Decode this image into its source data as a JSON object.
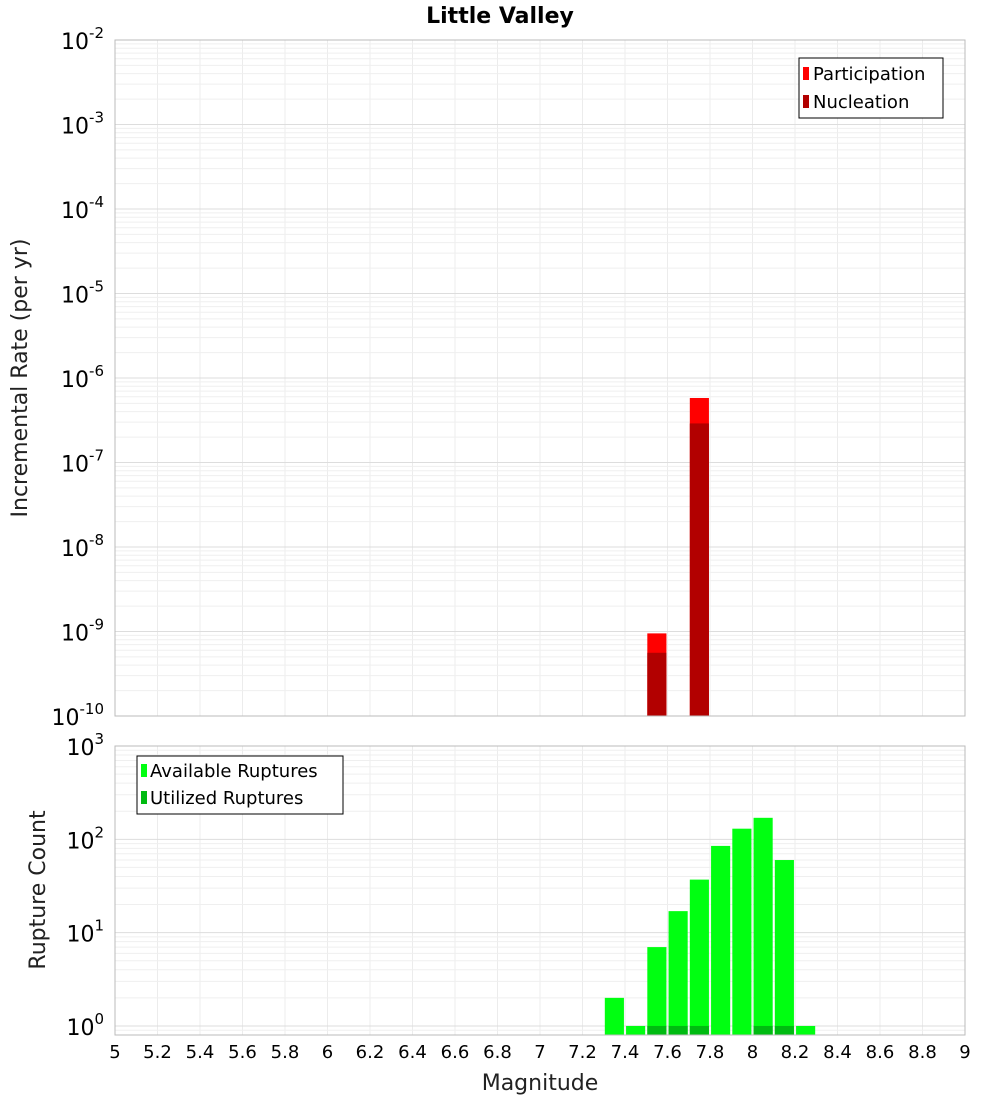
{
  "chart_data": [
    {
      "type": "bar",
      "title": "Little Valley",
      "ylabel": "Incremental Rate (per yr)",
      "xlabel": "",
      "xlim": [
        5,
        9
      ],
      "ylim": [
        1e-10,
        0.01
      ],
      "yscale": "log",
      "ytick_exponents": [
        -10,
        -9,
        -8,
        -7,
        -6,
        -5,
        -4,
        -3,
        -2
      ],
      "grid": true,
      "legend_position": "top-right",
      "series": [
        {
          "name": "Participation",
          "color": "#ff0000",
          "x": [
            7.55,
            7.75
          ],
          "values": [
            9.5e-10,
            5.8e-07
          ]
        },
        {
          "name": "Nucleation",
          "color": "#b20000",
          "x": [
            7.55,
            7.75
          ],
          "values": [
            5.6e-10,
            2.9e-07
          ]
        }
      ]
    },
    {
      "type": "bar",
      "title": "",
      "ylabel": "Rupture Count",
      "xlabel": "Magnitude",
      "xlim": [
        5,
        9
      ],
      "ylim": [
        0.8,
        1000
      ],
      "yscale": "log",
      "ytick_exponents": [
        0,
        1,
        2,
        3
      ],
      "xticks": [
        "5",
        "5.2",
        "5.4",
        "5.6",
        "5.8",
        "6",
        "6.2",
        "6.4",
        "6.6",
        "6.8",
        "7",
        "7.2",
        "7.4",
        "7.6",
        "7.8",
        "8",
        "8.2",
        "8.4",
        "8.6",
        "8.8",
        "9"
      ],
      "grid": true,
      "legend_position": "top-left",
      "series": [
        {
          "name": "Available Ruptures",
          "color": "#00ff11",
          "x": [
            7.35,
            7.45,
            7.55,
            7.65,
            7.75,
            7.85,
            7.95,
            8.05,
            8.15,
            8.25
          ],
          "values": [
            2,
            1,
            7,
            17,
            37,
            85,
            130,
            170,
            60,
            1
          ]
        },
        {
          "name": "Utilized Ruptures",
          "color": "#00bb11",
          "x": [
            7.55,
            7.65,
            7.75,
            8.05,
            8.15
          ],
          "values": [
            1,
            1,
            1,
            1,
            1
          ]
        }
      ]
    }
  ]
}
